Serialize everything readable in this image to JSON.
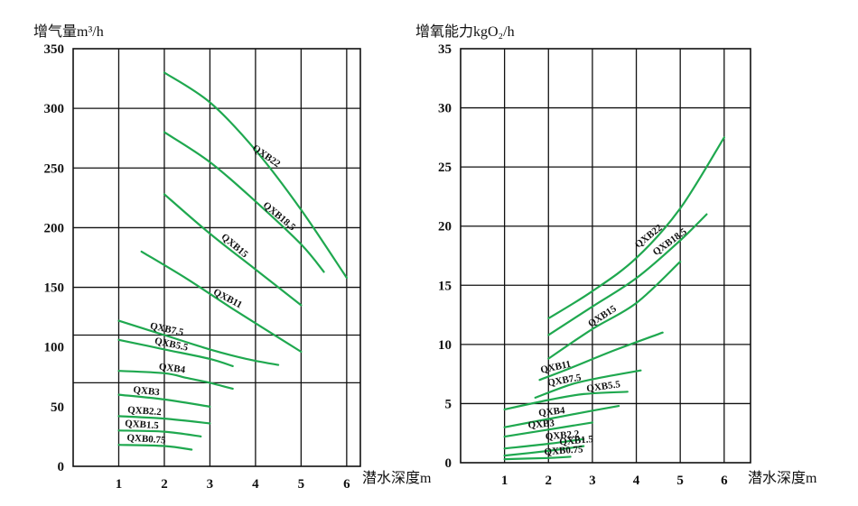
{
  "colors": {
    "curve": "#1fa84f",
    "grid": "#111111"
  },
  "chart_data": [
    {
      "type": "line",
      "ylabel": "增气量m³/h",
      "xlabel": "潜水深度m",
      "xlim": [
        0,
        6.3
      ],
      "ylim": [
        0,
        350
      ],
      "xticks": [
        1,
        2,
        3,
        4,
        5,
        6
      ],
      "yticks": [
        0,
        50,
        100,
        150,
        200,
        250,
        300,
        350
      ],
      "gridY": [
        70,
        110,
        150,
        200,
        250,
        300
      ],
      "gridX": [
        1,
        2,
        3,
        4,
        5,
        6
      ],
      "legend": "inline",
      "series": [
        {
          "name": "QXB22",
          "x": [
            2,
            3,
            4,
            5,
            6
          ],
          "y": [
            330,
            305,
            265,
            215,
            158
          ],
          "label_at": 0.55,
          "label_rot": 35
        },
        {
          "name": "QXB18.5",
          "x": [
            2,
            3,
            4,
            5,
            5.5
          ],
          "y": [
            280,
            255,
            222,
            186,
            163
          ],
          "label_at": 0.62,
          "label_rot": 40
        },
        {
          "name": "QXB15",
          "x": [
            2,
            3,
            4,
            5
          ],
          "y": [
            228,
            195,
            165,
            135
          ],
          "label_at": 0.5,
          "label_rot": 40
        },
        {
          "name": "QXB11",
          "x": [
            1.5,
            2.5,
            3.5,
            5
          ],
          "y": [
            180,
            157,
            132,
            96
          ],
          "label_at": 0.62,
          "label_rot": 28
        },
        {
          "name": "QXB7.5",
          "x": [
            1,
            2,
            3,
            3.8,
            4.5
          ],
          "y": [
            122,
            110,
            98,
            90,
            85
          ],
          "label_at": 0.26,
          "label_rot": 12
        },
        {
          "name": "QXB5.5",
          "x": [
            1,
            2,
            3,
            3.5
          ],
          "y": [
            106,
            98,
            90,
            84
          ],
          "label_at": 0.38,
          "label_rot": 12
        },
        {
          "name": "QXB4",
          "x": [
            1,
            2,
            2.5,
            3,
            3.5
          ],
          "y": [
            80,
            78,
            74,
            70,
            65
          ],
          "label_at": 0.33,
          "label_rot": 8
        },
        {
          "name": "QXB3",
          "x": [
            1,
            2,
            3
          ],
          "y": [
            60,
            56,
            50
          ],
          "label_at": 0.3,
          "label_rot": 6
        },
        {
          "name": "QXB2.2",
          "x": [
            1,
            2,
            3
          ],
          "y": [
            42,
            40,
            36
          ],
          "label_at": 0.28,
          "label_rot": 4
        },
        {
          "name": "QXB1.5",
          "x": [
            1,
            2,
            2.8
          ],
          "y": [
            30,
            29,
            25
          ],
          "label_at": 0.25,
          "label_rot": 4
        },
        {
          "name": "QXB0.75",
          "x": [
            1,
            2,
            2.6
          ],
          "y": [
            18,
            17,
            14
          ],
          "label_at": 0.3,
          "label_rot": 4
        }
      ]
    },
    {
      "type": "line",
      "ylabel": "增氧能力kgO₂/h",
      "xlabel": "潜水深度m",
      "xlim": [
        0,
        6.6
      ],
      "ylim": [
        0,
        35
      ],
      "xticks": [
        1,
        2,
        3,
        4,
        5,
        6
      ],
      "yticks": [
        0,
        5,
        10,
        15,
        20,
        25,
        30,
        35
      ],
      "gridY": [
        5,
        10,
        15,
        20,
        25,
        30
      ],
      "gridX": [
        1,
        2,
        3,
        4,
        5,
        6
      ],
      "legend": "inline",
      "series": [
        {
          "name": "QXB22",
          "x": [
            2,
            3,
            4,
            5,
            6
          ],
          "y": [
            12.2,
            14.5,
            17.3,
            21.5,
            27.5
          ],
          "label_at": 0.58,
          "label_rot": -38
        },
        {
          "name": "QXB18.5",
          "x": [
            2,
            3,
            4,
            5,
            5.6
          ],
          "y": [
            10.8,
            13.2,
            15.6,
            18.8,
            21
          ],
          "label_at": 0.7,
          "label_rot": -36
        },
        {
          "name": "QXB15",
          "x": [
            2,
            3,
            4,
            5
          ],
          "y": [
            8.8,
            11.3,
            13.5,
            17
          ],
          "label_at": 0.42,
          "label_rot": -33
        },
        {
          "name": "QXB11",
          "x": [
            1.8,
            2.5,
            3.5,
            4.6
          ],
          "y": [
            7,
            8,
            9.5,
            11
          ],
          "label_at": 0.18,
          "label_rot": -12
        },
        {
          "name": "QXB7.5",
          "x": [
            1.7,
            2.5,
            3.2,
            4.1
          ],
          "y": [
            5.5,
            6.6,
            7.2,
            7.8
          ],
          "label_at": 0.28,
          "label_rot": -10
        },
        {
          "name": "QXB5.5",
          "x": [
            1,
            2,
            2.8,
            3.8
          ],
          "y": [
            4.5,
            5.3,
            5.8,
            6
          ],
          "label_at": 0.82,
          "label_rot": -8
        },
        {
          "name": "QXB4",
          "x": [
            1,
            2,
            3,
            3.6
          ],
          "y": [
            3,
            3.7,
            4.4,
            4.8
          ],
          "label_at": 0.36,
          "label_rot": -6
        },
        {
          "name": "QXB3",
          "x": [
            1,
            2,
            3
          ],
          "y": [
            2.2,
            2.8,
            3.4
          ],
          "label_at": 0.42,
          "label_rot": -5
        },
        {
          "name": "QXB2.2",
          "x": [
            1,
            2,
            2.8
          ],
          "y": [
            1.2,
            1.6,
            2.0
          ],
          "label_at": 0.7,
          "label_rot": -5
        },
        {
          "name": "QXB1.5",
          "x": [
            1,
            2,
            2.8
          ],
          "y": [
            0.6,
            1.0,
            1.4
          ],
          "label_at": 0.9,
          "label_rot": -5
        },
        {
          "name": "QXB0.75",
          "x": [
            1,
            2,
            2.5
          ],
          "y": [
            0.3,
            0.4,
            0.5
          ],
          "label_at": 0.85,
          "label_rot": -4
        }
      ]
    }
  ]
}
